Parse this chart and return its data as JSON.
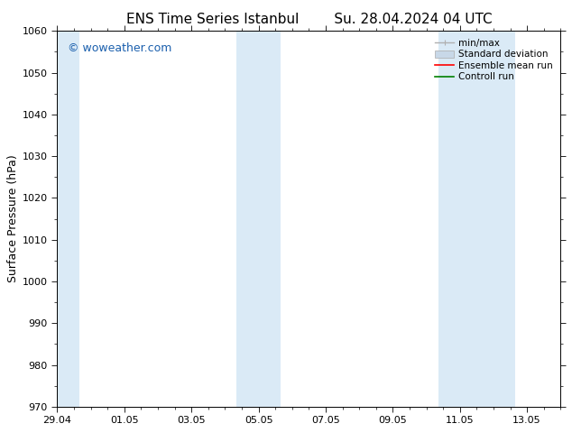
{
  "title_left": "ENS Time Series Istanbul",
  "title_right": "Su. 28.04.2024 04 UTC",
  "ylabel": "Surface Pressure (hPa)",
  "ylim": [
    970,
    1060
  ],
  "yticks": [
    970,
    980,
    990,
    1000,
    1010,
    1020,
    1030,
    1040,
    1050,
    1060
  ],
  "xtick_labels": [
    "29.04",
    "01.05",
    "03.05",
    "05.05",
    "07.05",
    "09.05",
    "11.05",
    "13.05"
  ],
  "xtick_positions": [
    0,
    2,
    4,
    6,
    8,
    10,
    12,
    14
  ],
  "x_min": 0,
  "x_max": 15,
  "shaded_bands": [
    {
      "xstart": -0.05,
      "xend": 0.65
    },
    {
      "xstart": 5.35,
      "xend": 6.65
    },
    {
      "xstart": 11.35,
      "xend": 13.65
    }
  ],
  "shade_color": "#daeaf6",
  "watermark": "© woweather.com",
  "watermark_color": "#1a5fad",
  "watermark_fontsize": 9,
  "legend_minmax_color": "#b0b0b0",
  "legend_std_color": "#c8d8e8",
  "legend_mean_color": "#ff0000",
  "legend_ctrl_color": "#008000",
  "bg_color": "#ffffff",
  "title_fontsize": 11,
  "axis_label_fontsize": 9,
  "tick_fontsize": 8,
  "legend_fontsize": 7.5
}
